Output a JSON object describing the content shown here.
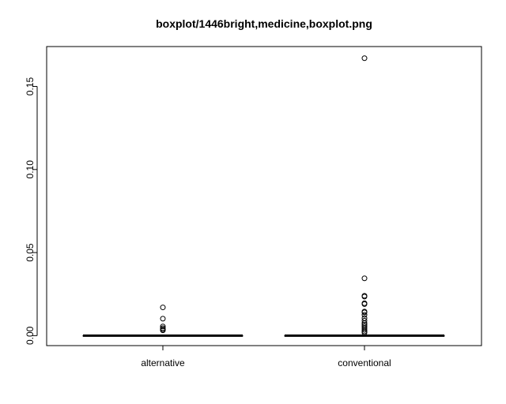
{
  "chart_data": {
    "type": "boxplot",
    "title": "boxplot/1446bright,medicine,boxplot.png",
    "xlabel": "",
    "ylabel": "",
    "ylim": [
      -0.006,
      0.174
    ],
    "y_ticks": [
      0.0,
      0.05,
      0.1,
      0.15
    ],
    "y_tick_labels": [
      "0.00",
      "0.05",
      "0.10",
      "0.15"
    ],
    "categories": [
      "alternative",
      "conventional"
    ],
    "boxes": [
      {
        "name": "alternative",
        "min": 0.0,
        "q1": 0.0,
        "median": 0.0,
        "q3": 0.0,
        "max": 0.0,
        "outliers": [
          0.017,
          0.0102,
          0.0055,
          0.0045,
          0.0038,
          0.0032
        ]
      },
      {
        "name": "conventional",
        "min": 0.0,
        "q1": 0.0,
        "median": 0.0,
        "q3": 0.0,
        "max": 0.0,
        "outliers": [
          0.167,
          0.0345,
          0.024,
          0.0235,
          0.0195,
          0.019,
          0.0145,
          0.014,
          0.0125,
          0.0105,
          0.009,
          0.0075,
          0.0065,
          0.0055,
          0.0045,
          0.0035,
          0.0025,
          0.0018
        ]
      }
    ],
    "grid": false,
    "legend": "none"
  }
}
